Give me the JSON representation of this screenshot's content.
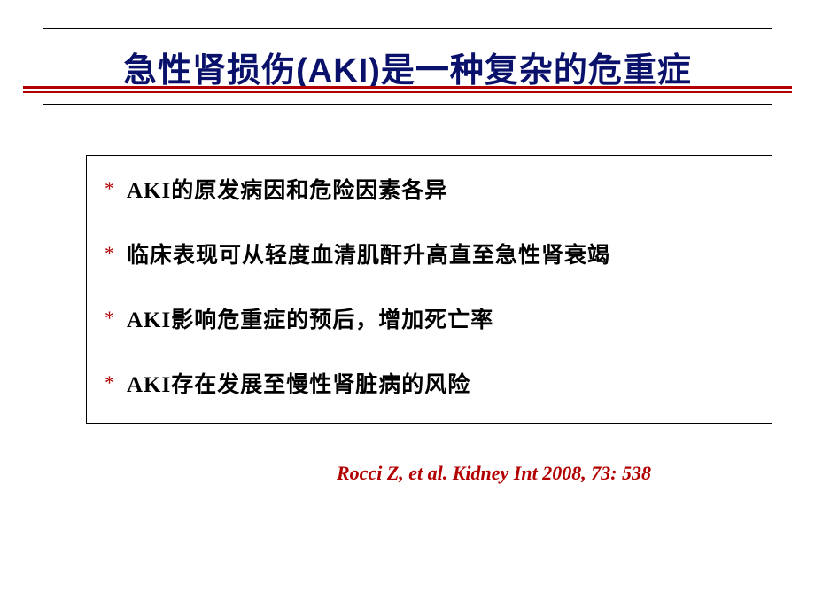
{
  "title": "急性肾损伤(AKI)是一种复杂的危重症",
  "bullets": [
    {
      "text": "AKI的原发病因和危险因素各异"
    },
    {
      "text": "临床表现可从轻度血清肌酐升高直至急性肾衰竭"
    },
    {
      "text": "AKI影响危重症的预后，增加死亡率"
    },
    {
      "text": "AKI存在发展至慢性肾脏病的风险"
    }
  ],
  "bullet_marker": "*",
  "citation": "Rocci Z, et al. Kidney Int 2008, 73: 538",
  "colors": {
    "title_text": "#0a116b",
    "accent": "#b20000",
    "border": "#000000",
    "body_text": "#000000",
    "background": "#ffffff"
  }
}
